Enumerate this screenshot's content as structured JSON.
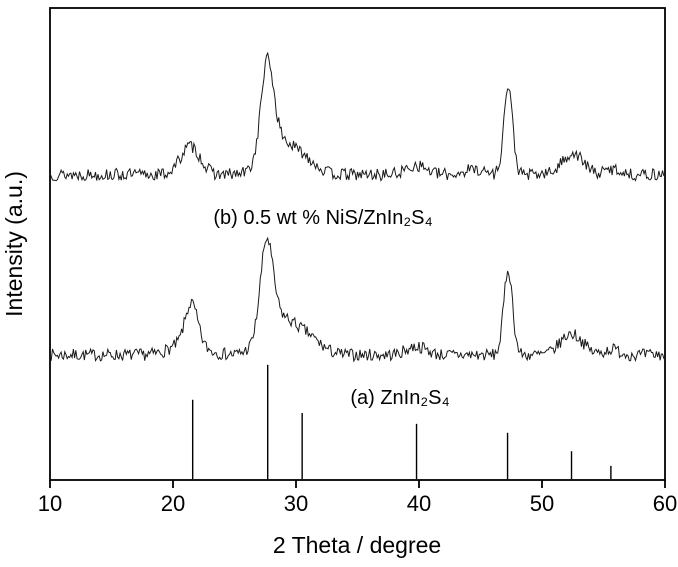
{
  "figure": {
    "title": "",
    "background": "#ffffff"
  },
  "chart_data": {
    "type": "line",
    "title": "",
    "xlabel": "2 Theta / degree",
    "ylabel": "Intensity (a.u.)",
    "xlim": [
      10,
      60
    ],
    "x_ticks": [
      "10",
      "20",
      "30",
      "40",
      "50",
      "60"
    ],
    "y_ticks": [],
    "grid": false,
    "legend_position": "inline-annotations",
    "line_color": "#1a1a1a",
    "axis_color": "#000000",
    "background": "#ffffff",
    "series": [
      {
        "name": "(a) ZnIn2S4",
        "label": "(a) ZnIn₂S₄",
        "baseline": 0.265,
        "noise": 0.013,
        "peaks": [
          {
            "center": 21.5,
            "amplitude": 0.085,
            "width": 0.5
          },
          {
            "center": 21.2,
            "amplitude": 0.025,
            "width": 1.3
          },
          {
            "center": 27.6,
            "amplitude": 0.185,
            "width": 0.5
          },
          {
            "center": 28.4,
            "amplitude": 0.075,
            "width": 1.2
          },
          {
            "center": 30.7,
            "amplitude": 0.04,
            "width": 1.2
          },
          {
            "center": 39.8,
            "amplitude": 0.018,
            "width": 0.8
          },
          {
            "center": 47.25,
            "amplitude": 0.18,
            "width": 0.36
          },
          {
            "center": 52.4,
            "amplitude": 0.045,
            "width": 0.9
          },
          {
            "center": 55.7,
            "amplitude": 0.012,
            "width": 0.6
          }
        ]
      },
      {
        "name": "(b) 0.5 wt % NiS/ZnIn2S4",
        "label": "(b) 0.5 wt % NiS/ZnIn₂S₄",
        "baseline": 0.647,
        "noise": 0.013,
        "peaks": [
          {
            "center": 21.4,
            "amplitude": 0.06,
            "width": 0.8
          },
          {
            "center": 27.65,
            "amplitude": 0.185,
            "width": 0.5
          },
          {
            "center": 28.4,
            "amplitude": 0.075,
            "width": 1.1
          },
          {
            "center": 30.6,
            "amplitude": 0.035,
            "width": 1.0
          },
          {
            "center": 39.8,
            "amplitude": 0.02,
            "width": 0.8
          },
          {
            "center": 44.5,
            "amplitude": 0.012,
            "width": 0.8
          },
          {
            "center": 47.25,
            "amplitude": 0.185,
            "width": 0.36
          },
          {
            "center": 52.5,
            "amplitude": 0.045,
            "width": 0.85
          },
          {
            "center": 55.8,
            "amplitude": 0.012,
            "width": 0.6
          }
        ]
      }
    ],
    "reference_pattern": {
      "name": "ZnIn2S4 reference stick pattern",
      "positions": [
        21.6,
        27.7,
        30.5,
        39.8,
        47.2,
        52.4,
        55.6
      ],
      "heights": [
        0.17,
        0.244,
        0.142,
        0.119,
        0.1,
        0.061,
        0.03
      ]
    }
  }
}
